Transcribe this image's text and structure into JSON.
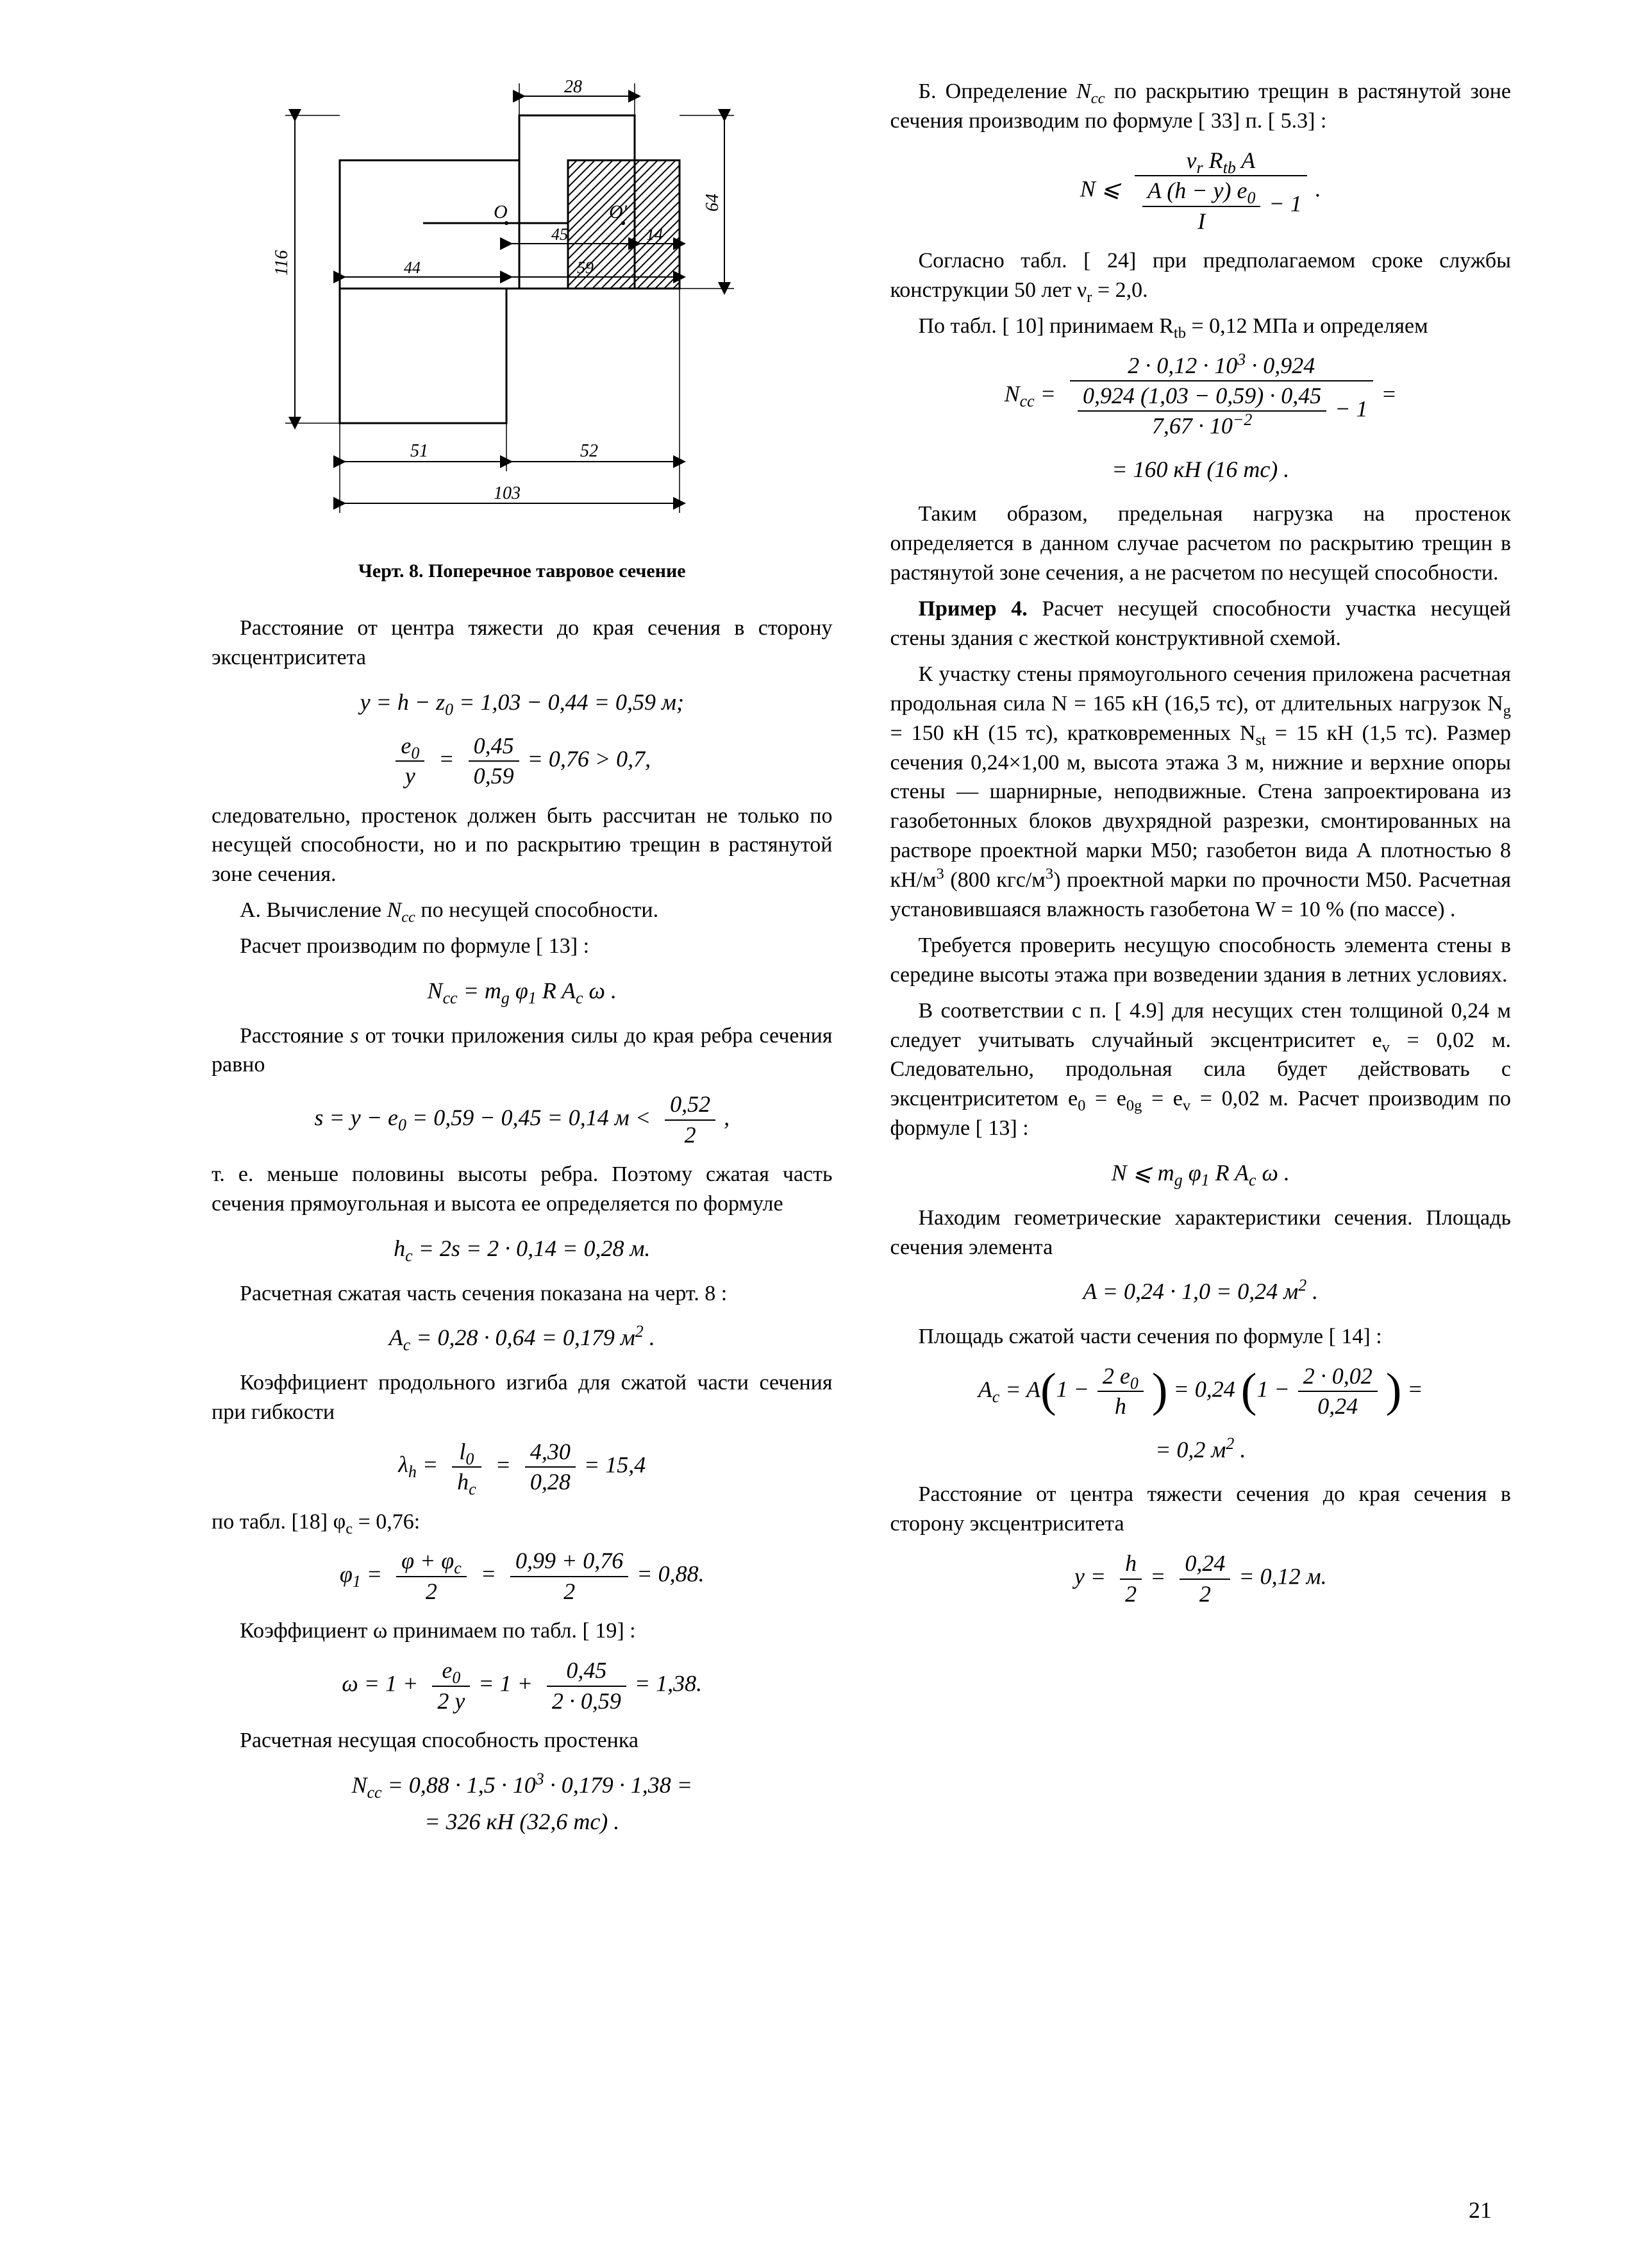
{
  "page_number": "21",
  "figure": {
    "caption": "Черт. 8. Поперечное тавровое сечение",
    "dims": {
      "d28": "28",
      "d116": "116",
      "d45": "45",
      "d14": "14",
      "d64": "64",
      "d44": "44",
      "d59": "59",
      "d51": "51",
      "d52": "52",
      "d103": "103",
      "O": "O",
      "Oprime": "O'"
    },
    "style": {
      "stroke": "#000000",
      "stroke_width": 3,
      "hatch_spacing": 12,
      "font_size_dim": 28
    }
  },
  "left": {
    "p1": "Расстояние от центра тяжести до края сечения в сторону эксцентриситета",
    "f1a_lhs": "y  =  h − z",
    "f1a_sub": "0",
    "f1a_rhs": "  =  1,03 − 0,44  =  0,59 м;",
    "f1b_num1": "e",
    "f1b_num1sub": "0",
    "f1b_den1": "y",
    "f1b_num2": "0,45",
    "f1b_den2": "0,59",
    "f1b_rhs": "  =  0,76  >  0,7,",
    "p2": "следовательно, простенок должен быть рассчитан не только по несущей способности, но и по раскрытию трещин в растянутой зоне сечения.",
    "p3_a": "А. Вычисление ",
    "p3_var": "N",
    "p3_sub": "cc",
    "p3_b": " по несущей способности.",
    "p4": "Расчет производим по формуле [ 13] :",
    "f2": "N<sub>cc</sub>  =  m<sub>g</sub> φ<sub>1</sub> R A<sub>c</sub> ω .",
    "p5_a": "Расстояние ",
    "p5_s": "s",
    "p5_b": "   от точки приложения силы до края ребра сечения равно",
    "f3_lhs": "s  =  y − e<sub>0</sub>  =  0,59 − 0,45  =  0,14 м  <",
    "f3_num": "0,52",
    "f3_den": "2",
    "f3_tail": " ,",
    "p6": "т. е. меньше половины высоты ребра. Поэтому сжатая часть сечения прямоугольная и высота ее определяется по формуле",
    "f4": "h<sub>c</sub>  =  2s  =  2 · 0,14  =  0,28 м.",
    "p7": "Расчетная сжатая часть сечения показана на черт. 8 :",
    "f5": "A<sub>c</sub>  =  0,28 · 0,64  =  0,179 м<sup>2</sup> .",
    "p8": "Коэффициент продольного изгиба для сжатой части сечения при гибкости",
    "f6_lhs": "λ<sub>h</sub>  =",
    "f6_n1": "l<sub>0</sub>",
    "f6_d1": "h<sub>c</sub>",
    "f6_n2": "4,30",
    "f6_d2": "0,28",
    "f6_rhs": "  =  15,4",
    "p9": "по табл. [18]  φ<sub>c</sub> = 0,76:",
    "f7_lhs": "φ<sub>1</sub>  =",
    "f7_n1": "φ + φ<sub>c</sub>",
    "f7_d1": "2",
    "f7_n2": "0,99 + 0,76",
    "f7_d2": "2",
    "f7_rhs": "  =  0,88.",
    "p10": "Коэффициент  ω  принимаем по табл. [ 19] :",
    "f8_lhs": "ω  =  1 +",
    "f8_n1": "e<sub>0</sub>",
    "f8_d1": "2 y",
    "f8_mid": "  =  1 +",
    "f8_n2": "0,45",
    "f8_d2": "2 · 0,59",
    "f8_rhs": "  =  1,38.",
    "p11": "Расчетная несущая способность простенка",
    "f9a": "N<sub>cc</sub>  =  0,88 · 1,5 · 10<sup>3</sup> · 0,179 · 1,38  =",
    "f9b": "=  326 кН (32,6 тс) ."
  },
  "right": {
    "p1_a": "Б. Определение ",
    "p1_var": "N",
    "p1_sub": "cc",
    "p1_b": " по раскрытию трещин в растянутой зоне сечения производим по формуле [ 33]  п. [ 5.3] :",
    "fB_lhs": "N  ⩽",
    "fB_num": "ν<sub>r</sub> R<sub>tb</sub> A",
    "fB_den_inner_num": "A (h − y) e<sub>0</sub>",
    "fB_den_inner_den": "I",
    "fB_den_tail": " − 1",
    "fB_tail": " .",
    "p2": "Согласно табл. [ 24] при предполагаемом сроке службы конструкции 50 лет  ν<sub>r</sub>  =  2,0.",
    "p3": "По табл. [ 10] принимаем R<sub>tb</sub> = 0,12 МПа и определяем",
    "fC_lhs": "N<sub>cc</sub>  =",
    "fC_num": "2 · 0,12 · 10<sup>3</sup> · 0,924",
    "fC_den_inner_num": "0,924 (1,03 − 0,59) · 0,45",
    "fC_den_inner_den": "7,67 · 10<sup>−2</sup>",
    "fC_den_tail": " − 1",
    "fC_rhs": "  =",
    "fC2": "=  160 кН (16 тс) .",
    "p4": "Таким образом, предельная нагрузка на простенок определяется в данном случае расчетом по раскрытию трещин в растянутой зоне сечения, а не расчетом по несущей способности.",
    "p5_a": "Пример 4.",
    "p5_b": " Расчет несущей способности участка несущей стены здания с жесткой конструктивной схемой.",
    "p6": "К участку стены прямоугольного сечения приложена расчетная продольная сила  N = 165 кН (16,5 тс), от длительных нагрузок N<sub>g</sub>  =  150 кН (15 тс), кратковременных N<sub>st</sub>  =  15 кН  (1,5 тс). Размер сечения 0,24×1,00 м, высота этажа 3 м, нижние и верхние опоры стены — шарнирные, неподвижные. Стена запроектирована из газобетонных блоков двухрядной разрезки, смонтированных на растворе проектной марки М50; газобетон вида А плотностью 8 кН/м<sup>3</sup>  (800 кгс/м<sup>3</sup>) проектной марки по прочности М50. Расчетная установившаяся влажность газобетона  W = 10 % (по массе) .",
    "p7": "Требуется проверить несущую способность элемента стены в середине высоты этажа при возведении здания в летних условиях.",
    "p8": "В соответствии с п. [ 4.9] для несущих стен толщиной 0,24 м следует учитывать случайный эксцентриситет e<sub>v</sub>  =  0,02 м. Следовательно, продольная сила будет действовать с эксцентриситетом e<sub>0</sub>  =  e<sub>0g</sub>  =  e<sub>v</sub>  =  0,02 м. Расчет производим по формуле [ 13] :",
    "fD": "N ⩽ m<sub>g</sub> φ<sub>1</sub> R A<sub>c</sub> ω .",
    "p9": "Находим геометрические характеристики сечения. Площадь сечения элемента",
    "fE": "A  =  0,24 · 1,0  =  0,24 м<sup>2</sup> .",
    "p10": "Площадь сжатой части сечения по формуле [ 14] :",
    "fF_lhs": "A<sub>c</sub>  =  A",
    "fF_inner1": "1 −",
    "fF_n1": "2 e<sub>0</sub>",
    "fF_d1": "h",
    "fF_mid": "  =  0,24",
    "fF_inner2": "1 −",
    "fF_n2": "2 · 0,02",
    "fF_d2": "0,24",
    "fF_rhs": "  =",
    "fF2": "=  0,2 м<sup>2</sup> .",
    "p11": "Расстояние от центра тяжести сечения до края сечения в сторону эксцентриситета",
    "fG_lhs": "y  =",
    "fG_n1": "h",
    "fG_d1": "2",
    "fG_mid": "  =",
    "fG_n2": "0,24",
    "fG_d2": "2",
    "fG_rhs": "  =  0,12 м."
  }
}
